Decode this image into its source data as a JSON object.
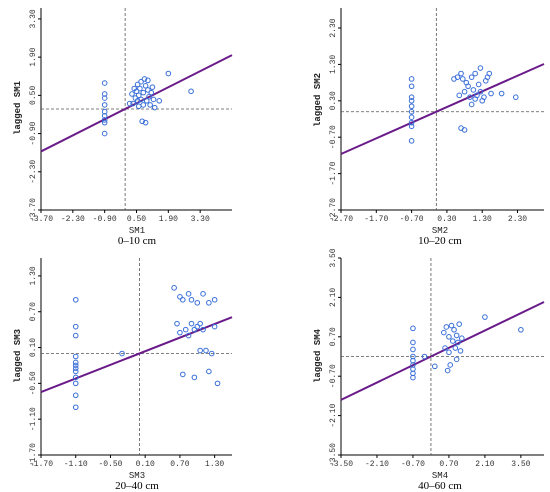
{
  "chart_data": [
    {
      "type": "scatter",
      "caption": "0–10 cm",
      "xlabel": "SM1",
      "ylabel": "lagged SM1",
      "xlim": [
        -3.7,
        4.7
      ],
      "ylim": [
        -3.7,
        3.7
      ],
      "xticks": [
        "-3.70",
        "-2.30",
        "-0.90",
        "0.50",
        "1.90",
        "3.30"
      ],
      "yticks": [
        "-3.70",
        "-2.30",
        "-0.90",
        "0.50",
        "1.90",
        "3.30"
      ],
      "mean_x": 0.0,
      "mean_y": 0.0,
      "slope": 0.42,
      "points": [
        [
          -0.9,
          0.95
        ],
        [
          -0.9,
          0.55
        ],
        [
          -0.9,
          0.4
        ],
        [
          -0.9,
          0.15
        ],
        [
          -0.9,
          -0.1
        ],
        [
          -0.9,
          -0.25
        ],
        [
          -0.9,
          -0.4
        ],
        [
          -0.9,
          -0.5
        ],
        [
          -0.9,
          -0.9
        ],
        [
          0.2,
          0.2
        ],
        [
          0.3,
          0.55
        ],
        [
          0.35,
          0.2
        ],
        [
          0.4,
          0.75
        ],
        [
          0.45,
          0.4
        ],
        [
          0.5,
          0.65
        ],
        [
          0.55,
          0.3
        ],
        [
          0.55,
          0.9
        ],
        [
          0.6,
          0.1
        ],
        [
          0.6,
          0.5
        ],
        [
          0.65,
          0.75
        ],
        [
          0.7,
          1.0
        ],
        [
          0.7,
          0.35
        ],
        [
          0.75,
          -0.45
        ],
        [
          0.8,
          0.15
        ],
        [
          0.8,
          0.6
        ],
        [
          0.85,
          1.1
        ],
        [
          0.9,
          0.85
        ],
        [
          0.9,
          -0.5
        ],
        [
          0.95,
          0.3
        ],
        [
          1.0,
          0.7
        ],
        [
          1.0,
          1.05
        ],
        [
          1.05,
          0.45
        ],
        [
          1.1,
          0.15
        ],
        [
          1.15,
          0.6
        ],
        [
          1.2,
          0.8
        ],
        [
          1.25,
          0.35
        ],
        [
          1.3,
          0.05
        ],
        [
          1.5,
          0.3
        ],
        [
          1.9,
          1.3
        ],
        [
          2.9,
          0.65
        ]
      ]
    },
    {
      "type": "scatter",
      "caption": "10–20 cm",
      "xlabel": "SM2",
      "ylabel": "lagged SM2",
      "xlim": [
        -2.7,
        3.05
      ],
      "ylim": [
        -2.7,
        2.85
      ],
      "xticks": [
        "-2.70",
        "-1.70",
        "-0.70",
        "0.30",
        "1.30",
        "2.30"
      ],
      "yticks": [
        "-2.70",
        "-1.70",
        "-0.70",
        "0.30",
        "1.30",
        "2.30"
      ],
      "mean_x": 0.0,
      "mean_y": 0.0,
      "slope": 0.43,
      "points": [
        [
          -0.7,
          0.9
        ],
        [
          -0.7,
          0.7
        ],
        [
          -0.7,
          0.4
        ],
        [
          -0.7,
          0.3
        ],
        [
          -0.7,
          0.15
        ],
        [
          -0.7,
          0.0
        ],
        [
          -0.7,
          -0.15
        ],
        [
          -0.7,
          -0.3
        ],
        [
          -0.7,
          -0.4
        ],
        [
          -0.7,
          -0.8
        ],
        [
          0.5,
          0.9
        ],
        [
          0.6,
          0.95
        ],
        [
          0.65,
          0.45
        ],
        [
          0.7,
          1.05
        ],
        [
          0.7,
          -0.45
        ],
        [
          0.75,
          0.9
        ],
        [
          0.8,
          -0.5
        ],
        [
          0.8,
          0.55
        ],
        [
          0.85,
          0.8
        ],
        [
          0.9,
          0.7
        ],
        [
          0.95,
          0.4
        ],
        [
          1.0,
          0.95
        ],
        [
          1.0,
          0.2
        ],
        [
          1.05,
          0.6
        ],
        [
          1.1,
          1.05
        ],
        [
          1.1,
          0.35
        ],
        [
          1.15,
          0.45
        ],
        [
          1.2,
          0.75
        ],
        [
          1.25,
          0.55
        ],
        [
          1.25,
          1.2
        ],
        [
          1.3,
          0.3
        ],
        [
          1.35,
          0.4
        ],
        [
          1.4,
          0.85
        ],
        [
          1.45,
          0.95
        ],
        [
          1.5,
          1.05
        ],
        [
          1.55,
          0.5
        ],
        [
          1.85,
          0.5
        ],
        [
          2.25,
          0.4
        ]
      ]
    },
    {
      "type": "scatter",
      "caption": "20–40 cm",
      "xlabel": "SM3",
      "ylabel": "lagged SM3",
      "xlim": [
        -1.7,
        1.6
      ],
      "ylim": [
        -1.7,
        1.6
      ],
      "xticks": [
        "-1.70",
        "-1.10",
        "-0.50",
        "0.10",
        "0.70",
        "1.30"
      ],
      "yticks": [
        "-1.70",
        "-1.10",
        "-0.50",
        "0.10",
        "0.70",
        "1.30"
      ],
      "mean_x": 0.0,
      "mean_y": 0.0,
      "slope": 0.38,
      "points": [
        [
          -1.1,
          0.9
        ],
        [
          -1.1,
          0.45
        ],
        [
          -1.1,
          0.3
        ],
        [
          -1.1,
          -0.05
        ],
        [
          -1.1,
          -0.15
        ],
        [
          -1.1,
          -0.2
        ],
        [
          -1.1,
          -0.25
        ],
        [
          -1.1,
          -0.3
        ],
        [
          -1.1,
          -0.4
        ],
        [
          -1.1,
          -0.5
        ],
        [
          -1.1,
          -0.7
        ],
        [
          -1.1,
          -0.9
        ],
        [
          -0.3,
          0.0
        ],
        [
          0.6,
          1.1
        ],
        [
          0.65,
          0.5
        ],
        [
          0.7,
          0.35
        ],
        [
          0.7,
          0.95
        ],
        [
          0.75,
          -0.35
        ],
        [
          0.75,
          0.9
        ],
        [
          0.8,
          0.4
        ],
        [
          0.85,
          1.0
        ],
        [
          0.85,
          0.3
        ],
        [
          0.9,
          0.5
        ],
        [
          0.9,
          0.9
        ],
        [
          0.95,
          0.4
        ],
        [
          0.95,
          -0.4
        ],
        [
          1.0,
          0.45
        ],
        [
          1.0,
          0.85
        ],
        [
          1.05,
          0.5
        ],
        [
          1.05,
          0.05
        ],
        [
          1.1,
          0.4
        ],
        [
          1.1,
          1.0
        ],
        [
          1.15,
          0.05
        ],
        [
          1.2,
          0.85
        ],
        [
          1.2,
          -0.3
        ],
        [
          1.25,
          0.0
        ],
        [
          1.3,
          0.9
        ],
        [
          1.3,
          0.45
        ],
        [
          1.35,
          -0.5
        ]
      ]
    },
    {
      "type": "scatter",
      "caption": "40–60 cm",
      "xlabel": "SM4",
      "ylabel": "lagged SM4",
      "xlim": [
        -3.5,
        4.4
      ],
      "ylim": [
        -3.5,
        3.5
      ],
      "xticks": [
        "-3.50",
        "-2.10",
        "-0.70",
        "0.70",
        "2.10",
        "3.50"
      ],
      "yticks": [
        "-3.50",
        "-2.10",
        "-0.70",
        "0.70",
        "2.10",
        "3.50"
      ],
      "mean_x": 0.0,
      "mean_y": 0.0,
      "slope": 0.44,
      "points": [
        [
          -0.7,
          1.0
        ],
        [
          -0.7,
          0.5
        ],
        [
          -0.7,
          0.25
        ],
        [
          -0.7,
          0.0
        ],
        [
          -0.7,
          -0.15
        ],
        [
          -0.7,
          -0.3
        ],
        [
          -0.7,
          -0.45
        ],
        [
          -0.7,
          -0.6
        ],
        [
          -0.7,
          -0.75
        ],
        [
          -0.25,
          0.0
        ],
        [
          0.15,
          -0.35
        ],
        [
          0.5,
          0.85
        ],
        [
          0.55,
          0.3
        ],
        [
          0.6,
          1.05
        ],
        [
          0.65,
          -0.5
        ],
        [
          0.7,
          0.7
        ],
        [
          0.7,
          0.15
        ],
        [
          0.75,
          -0.3
        ],
        [
          0.8,
          1.1
        ],
        [
          0.85,
          0.55
        ],
        [
          0.9,
          0.95
        ],
        [
          0.95,
          0.3
        ],
        [
          1.0,
          0.75
        ],
        [
          1.0,
          -0.1
        ],
        [
          1.05,
          0.5
        ],
        [
          1.1,
          1.15
        ],
        [
          1.15,
          0.2
        ],
        [
          1.2,
          0.65
        ],
        [
          2.1,
          1.4
        ],
        [
          3.5,
          0.95
        ]
      ]
    }
  ]
}
